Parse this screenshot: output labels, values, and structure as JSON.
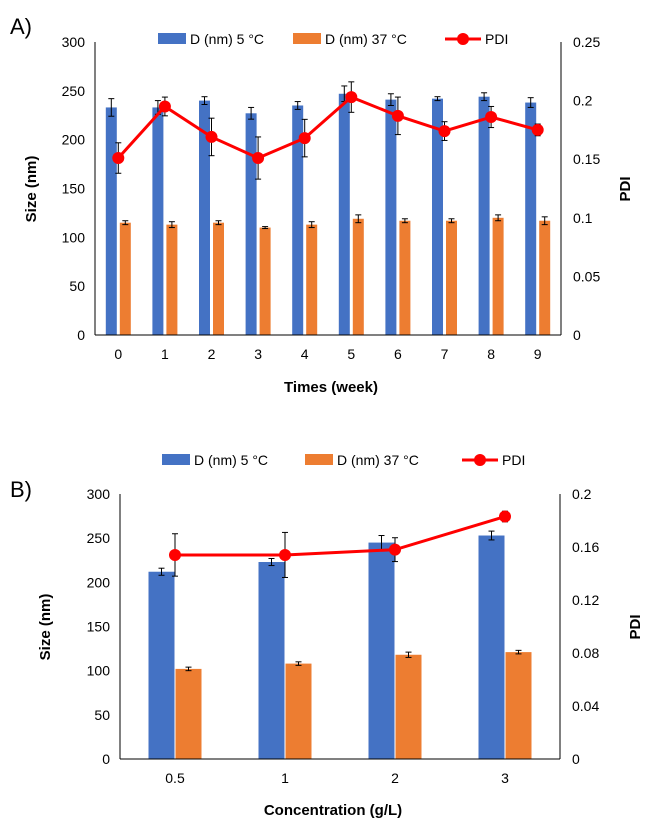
{
  "chart_data": [
    {
      "panel_label": "A)",
      "type": "bar",
      "xlabel": "Times (week)",
      "ylabel": "Size (nm)",
      "y2label": "PDI",
      "categories": [
        "0",
        "1",
        "2",
        "3",
        "4",
        "5",
        "6",
        "7",
        "8",
        "9"
      ],
      "ylim": [
        0,
        300
      ],
      "yticks": [
        0,
        50,
        100,
        150,
        200,
        250,
        300
      ],
      "y2lim": [
        0,
        0.25
      ],
      "y2ticks": [
        0,
        0.05,
        0.1,
        0.15,
        0.2,
        0.25
      ],
      "y2ticklabels": [
        "0",
        "0.05",
        "0.1",
        "0.15",
        "0.2",
        "0.25"
      ],
      "legend_position": "top",
      "series": [
        {
          "name": "D (nm) 5 °C",
          "type": "bar",
          "axis": "left",
          "color": "#4472C4",
          "values": [
            233,
            233,
            240,
            227,
            235,
            247,
            241,
            242,
            244,
            238
          ],
          "errors": [
            9,
            7,
            4,
            6,
            4,
            8,
            6,
            2,
            4,
            5
          ]
        },
        {
          "name": "D (nm) 37 °C",
          "type": "bar",
          "axis": "left",
          "color": "#ED7D31",
          "values": [
            115,
            113,
            115,
            110,
            113,
            119,
            117,
            117,
            120,
            117
          ],
          "errors": [
            2,
            3,
            2,
            1,
            3,
            4,
            2,
            2,
            3,
            4
          ]
        },
        {
          "name": "PDI",
          "type": "line",
          "axis": "right",
          "color": "#FF0000",
          "values": [
            0.151,
            0.195,
            0.169,
            0.151,
            0.168,
            0.203,
            0.187,
            0.174,
            0.186,
            0.175
          ],
          "errors": [
            0.013,
            0.008,
            0.016,
            0.018,
            0.016,
            0.013,
            0.016,
            0.008,
            0.009,
            0.005
          ]
        }
      ]
    },
    {
      "panel_label": "B)",
      "type": "bar",
      "xlabel": "Concentration (g/L)",
      "ylabel": "Size (nm)",
      "y2label": "PDI",
      "categories": [
        "0.5",
        "1",
        "2",
        "3"
      ],
      "ylim": [
        0,
        300
      ],
      "yticks": [
        0,
        50,
        100,
        150,
        200,
        250,
        300
      ],
      "y2lim": [
        0,
        0.2
      ],
      "y2ticks": [
        0,
        0.04,
        0.08,
        0.12,
        0.16,
        0.2
      ],
      "y2ticklabels": [
        "0",
        "0.04",
        "0.08",
        "0.12",
        "0.16",
        "0.2"
      ],
      "legend_position": "top",
      "series": [
        {
          "name": "D (nm) 5 °C",
          "type": "bar",
          "axis": "left",
          "color": "#4472C4",
          "values": [
            212,
            223,
            245,
            253
          ],
          "errors": [
            4,
            4,
            8,
            5
          ]
        },
        {
          "name": "D (nm) 37 °C",
          "type": "bar",
          "axis": "left",
          "color": "#ED7D31",
          "values": [
            102,
            108,
            118,
            121
          ],
          "errors": [
            2,
            2,
            3,
            2
          ]
        },
        {
          "name": "PDI",
          "type": "line",
          "axis": "right",
          "color": "#FF0000",
          "values": [
            0.154,
            0.154,
            0.158,
            0.183
          ],
          "errors": [
            0.016,
            0.017,
            0.009,
            0.004
          ]
        }
      ]
    }
  ]
}
